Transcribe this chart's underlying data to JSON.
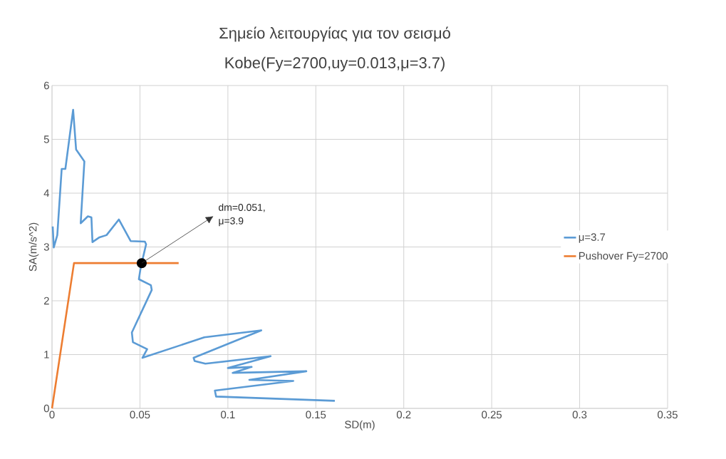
{
  "chart_data": {
    "type": "line",
    "title": "Σημείο λειτουργίας για τον σεισμό",
    "subtitle": "Kobe(Fy=2700,uy=0.013,μ=3.7)",
    "xlabel": "SD(m)",
    "ylabel": "SA(m/s^2)",
    "xlim": [
      0,
      0.35
    ],
    "ylim": [
      0,
      6
    ],
    "xticks": [
      0,
      0.05,
      0.1,
      0.15,
      0.2,
      0.25,
      0.3,
      0.35
    ],
    "yticks": [
      0,
      1,
      2,
      3,
      4,
      5,
      6
    ],
    "grid": true,
    "legend": "right",
    "annotations": [
      {
        "text": "dm=0.051, μ=3.9",
        "x": 0.051,
        "y": 2.7
      }
    ],
    "series": [
      {
        "name": "μ=3.7",
        "color": "#5b9bd5",
        "x": [
          0.0004,
          0.001,
          0.003,
          0.0055,
          0.0076,
          0.012,
          0.0137,
          0.0184,
          0.0163,
          0.0204,
          0.0224,
          0.023,
          0.027,
          0.031,
          0.038,
          0.0447,
          0.0528,
          0.0535,
          0.0512,
          0.0508,
          0.0494,
          0.0562,
          0.0567,
          0.0454,
          0.046,
          0.0541,
          0.0514,
          0.0866,
          0.119,
          0.0805,
          0.0811,
          0.0872,
          0.1243,
          0.1,
          0.1135,
          0.1027,
          0.1446,
          0.1122,
          0.1372,
          0.0926,
          0.0933,
          0.1608
        ],
        "values": [
          3.38,
          2.99,
          3.22,
          4.45,
          4.45,
          5.55,
          4.81,
          4.59,
          3.44,
          3.57,
          3.55,
          3.09,
          3.18,
          3.22,
          3.51,
          3.11,
          3.1,
          3.05,
          2.73,
          2.7,
          2.4,
          2.29,
          2.2,
          1.41,
          1.23,
          1.1,
          0.94,
          1.32,
          1.45,
          0.94,
          0.88,
          0.83,
          0.97,
          0.75,
          0.77,
          0.66,
          0.69,
          0.53,
          0.51,
          0.33,
          0.22,
          0.14
        ]
      },
      {
        "name": "Pushover Fy=2700",
        "color": "#ed7d31",
        "x": [
          0,
          0.0125,
          0.072
        ],
        "values": [
          0,
          2.7,
          2.7
        ]
      }
    ]
  }
}
